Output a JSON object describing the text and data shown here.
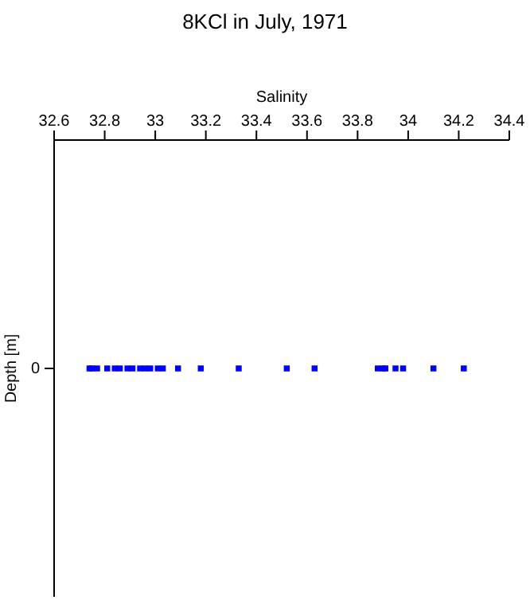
{
  "chart_data": {
    "type": "scatter",
    "orientation": "horizontal",
    "title": "8KCl in July, 1971",
    "xlabel": "Salinity",
    "ylabel": "Depth [m]",
    "categories": [
      "0"
    ],
    "series": [
      {
        "color": "#0000ff",
        "x": [
          "0",
          "0",
          "0",
          "0",
          "0",
          "0",
          "0",
          "0",
          "0",
          "0",
          "0",
          "0",
          "0",
          "0",
          "0",
          "0",
          "0",
          "0",
          "0",
          "0",
          "0",
          "0",
          "0",
          "0",
          "0"
        ],
        "values": [
          32.74,
          32.75,
          32.77,
          32.81,
          32.84,
          32.86,
          32.89,
          32.91,
          32.94,
          32.96,
          32.98,
          33.01,
          33.03,
          33.09,
          33.18,
          33.33,
          33.52,
          33.63,
          33.88,
          33.9,
          33.91,
          33.95,
          33.98,
          34.1,
          34.22
        ]
      }
    ],
    "xlim": [
      32.6,
      34.4
    ],
    "xticks": [
      32.6,
      32.8,
      33,
      33.2,
      33.4,
      33.6,
      33.8,
      34,
      34.2,
      34.4
    ],
    "marker": "square",
    "grid": false
  }
}
